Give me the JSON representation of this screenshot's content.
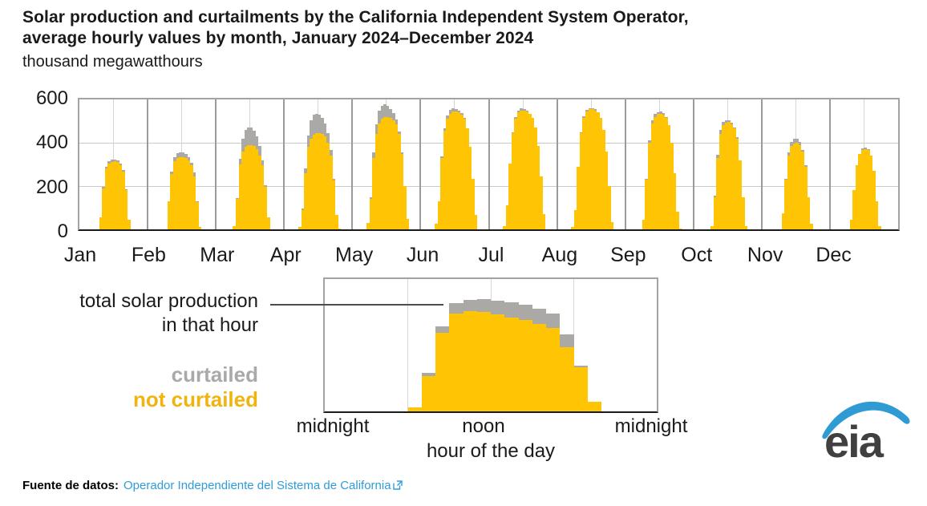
{
  "title": {
    "line1": "Solar production and curtailments by the California Independent System Operator,",
    "line2": "average hourly values by month, January 2024–December 2024"
  },
  "subtitle": "thousand megawatthours",
  "colors": {
    "not_curtailed": "#FFC403",
    "curtailed": "#ABA9A5",
    "grid_light": "#c9c9c9",
    "grid_boundary": "#9b9b9b",
    "axis": "#1a1a1a",
    "link_blue": "#2f9cd8",
    "logo_blue": "#2E9BD5",
    "logo_gray": "#404040"
  },
  "chart_data": {
    "type": "bar",
    "stacked": true,
    "title": "Solar production and curtailments by the California Independent System Operator, average hourly values by month, January 2024–December 2024",
    "ylabel": "thousand megawatthours",
    "ylim": [
      0,
      600
    ],
    "yticks": [
      0,
      200,
      400,
      600
    ],
    "grid": true,
    "months": [
      "Jan",
      "Feb",
      "Mar",
      "Apr",
      "May",
      "Jun",
      "Jul",
      "Aug",
      "Sep",
      "Oct",
      "Nov",
      "Dec"
    ],
    "hours": 24,
    "series_names": [
      "not curtailed",
      "curtailed"
    ],
    "monthly_hourly": [
      {
        "month": "Jan",
        "not_curtailed": [
          0,
          0,
          0,
          0,
          0,
          0,
          0,
          55,
          190,
          280,
          305,
          312,
          315,
          310,
          295,
          265,
          180,
          45,
          0,
          0,
          0,
          0,
          0,
          0
        ],
        "curtailed": [
          0,
          0,
          0,
          0,
          0,
          0,
          0,
          0,
          5,
          8,
          10,
          10,
          8,
          8,
          10,
          8,
          5,
          0,
          0,
          0,
          0,
          0,
          0,
          0
        ]
      },
      {
        "month": "Feb",
        "not_curtailed": [
          0,
          0,
          0,
          0,
          0,
          0,
          0,
          130,
          255,
          315,
          330,
          335,
          335,
          330,
          318,
          295,
          245,
          125,
          10,
          0,
          0,
          0,
          0,
          0
        ],
        "curtailed": [
          0,
          0,
          0,
          0,
          0,
          0,
          0,
          0,
          10,
          18,
          22,
          22,
          20,
          18,
          15,
          12,
          18,
          5,
          0,
          0,
          0,
          0,
          0,
          0
        ]
      },
      {
        "month": "Mar",
        "not_curtailed": [
          0,
          0,
          0,
          0,
          0,
          0,
          15,
          140,
          300,
          360,
          380,
          388,
          390,
          385,
          370,
          340,
          295,
          195,
          55,
          0,
          0,
          0,
          0,
          0
        ],
        "curtailed": [
          0,
          0,
          0,
          0,
          0,
          0,
          0,
          5,
          25,
          60,
          78,
          82,
          80,
          72,
          60,
          45,
          25,
          10,
          0,
          0,
          0,
          0,
          0,
          0
        ]
      },
      {
        "month": "Apr",
        "not_curtailed": [
          0,
          0,
          0,
          0,
          0,
          10,
          90,
          260,
          380,
          420,
          438,
          445,
          445,
          440,
          428,
          400,
          340,
          225,
          65,
          5,
          0,
          0,
          0,
          0
        ],
        "curtailed": [
          0,
          0,
          0,
          0,
          0,
          0,
          5,
          20,
          55,
          85,
          92,
          90,
          85,
          75,
          60,
          45,
          25,
          10,
          0,
          0,
          0,
          0,
          0,
          0
        ]
      },
      {
        "month": "May",
        "not_curtailed": [
          0,
          0,
          0,
          0,
          0,
          30,
          140,
          330,
          440,
          490,
          510,
          520,
          520,
          515,
          505,
          485,
          440,
          350,
          200,
          50,
          0,
          0,
          0,
          0
        ],
        "curtailed": [
          0,
          0,
          0,
          0,
          0,
          0,
          10,
          25,
          45,
          58,
          62,
          58,
          52,
          42,
          32,
          22,
          12,
          5,
          0,
          0,
          0,
          0,
          0,
          0
        ]
      },
      {
        "month": "Jun",
        "not_curtailed": [
          0,
          0,
          0,
          0,
          0,
          25,
          130,
          330,
          455,
          510,
          535,
          545,
          545,
          540,
          530,
          510,
          465,
          380,
          235,
          65,
          0,
          0,
          0,
          0
        ],
        "curtailed": [
          0,
          0,
          0,
          0,
          0,
          0,
          0,
          8,
          12,
          16,
          18,
          15,
          12,
          10,
          8,
          5,
          0,
          0,
          0,
          0,
          0,
          0,
          0,
          0
        ]
      },
      {
        "month": "Jul",
        "not_curtailed": [
          0,
          0,
          0,
          0,
          0,
          15,
          110,
          305,
          445,
          510,
          540,
          550,
          550,
          545,
          535,
          515,
          470,
          385,
          245,
          70,
          0,
          0,
          0,
          0
        ],
        "curtailed": [
          0,
          0,
          0,
          0,
          0,
          0,
          0,
          0,
          5,
          8,
          8,
          8,
          6,
          5,
          0,
          0,
          0,
          0,
          0,
          0,
          0,
          0,
          0,
          0
        ]
      },
      {
        "month": "Aug",
        "not_curtailed": [
          0,
          0,
          0,
          0,
          0,
          10,
          90,
          290,
          445,
          515,
          545,
          555,
          555,
          550,
          540,
          515,
          460,
          360,
          200,
          35,
          0,
          0,
          0,
          0
        ],
        "curtailed": [
          0,
          0,
          0,
          0,
          0,
          0,
          0,
          0,
          5,
          8,
          8,
          6,
          5,
          5,
          0,
          0,
          0,
          0,
          0,
          0,
          0,
          0,
          0,
          0
        ]
      },
      {
        "month": "Sep",
        "not_curtailed": [
          0,
          0,
          0,
          0,
          0,
          0,
          45,
          230,
          400,
          490,
          520,
          532,
          535,
          530,
          515,
          480,
          400,
          260,
          80,
          5,
          0,
          0,
          0,
          0
        ],
        "curtailed": [
          0,
          0,
          0,
          0,
          0,
          0,
          0,
          5,
          10,
          12,
          12,
          10,
          8,
          6,
          5,
          0,
          0,
          0,
          0,
          0,
          0,
          0,
          0,
          0
        ]
      },
      {
        "month": "Oct",
        "not_curtailed": [
          0,
          0,
          0,
          0,
          0,
          0,
          15,
          150,
          330,
          440,
          480,
          492,
          495,
          485,
          465,
          420,
          320,
          150,
          15,
          0,
          0,
          0,
          0,
          0
        ],
        "curtailed": [
          0,
          0,
          0,
          0,
          0,
          0,
          0,
          5,
          15,
          18,
          15,
          12,
          10,
          8,
          6,
          5,
          0,
          0,
          0,
          0,
          0,
          0,
          0,
          0
        ]
      },
      {
        "month": "Nov",
        "not_curtailed": [
          0,
          0,
          0,
          0,
          0,
          0,
          0,
          75,
          230,
          340,
          385,
          398,
          400,
          390,
          360,
          290,
          150,
          25,
          0,
          0,
          0,
          0,
          0,
          0
        ],
        "curtailed": [
          0,
          0,
          0,
          0,
          0,
          0,
          0,
          0,
          5,
          15,
          20,
          20,
          18,
          12,
          8,
          5,
          0,
          0,
          0,
          0,
          0,
          0,
          0,
          0
        ]
      },
      {
        "month": "Dec",
        "not_curtailed": [
          0,
          0,
          0,
          0,
          0,
          0,
          0,
          45,
          180,
          295,
          350,
          368,
          372,
          365,
          340,
          270,
          130,
          15,
          0,
          0,
          0,
          0,
          0,
          0
        ],
        "curtailed": [
          0,
          0,
          0,
          0,
          0,
          0,
          0,
          0,
          0,
          0,
          0,
          5,
          5,
          4,
          0,
          0,
          0,
          0,
          0,
          0,
          0,
          0,
          0,
          0
        ]
      }
    ],
    "inset": {
      "description_type": "bar",
      "annotation_line1": "total solar production",
      "annotation_line2": "in that hour",
      "legend": {
        "curtailed": "curtailed",
        "not_curtailed": "not curtailed"
      },
      "xticks": [
        "midnight",
        "noon",
        "midnight"
      ],
      "xlabel": "hour of the day",
      "ylim": [
        0,
        600
      ],
      "not_curtailed": [
        0,
        0,
        0,
        0,
        0,
        0,
        20,
        160,
        355,
        445,
        455,
        450,
        440,
        425,
        415,
        395,
        380,
        290,
        200,
        45,
        0,
        0,
        0,
        0
      ],
      "curtailed": [
        0,
        0,
        0,
        0,
        0,
        0,
        0,
        15,
        30,
        45,
        50,
        58,
        62,
        68,
        68,
        72,
        65,
        58,
        8,
        0,
        0,
        0,
        0,
        0
      ]
    }
  },
  "footer": {
    "label": "Fuente de datos:",
    "link_text": "Operador Independiente del Sistema de California",
    "external_link_icon": "external-link-icon"
  },
  "logo": {
    "text": "eia"
  }
}
